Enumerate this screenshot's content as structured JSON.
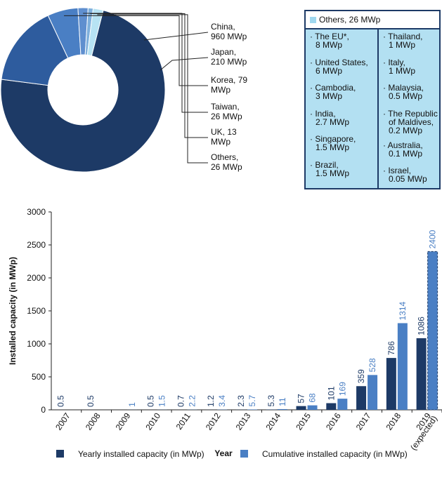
{
  "chart_data": [
    {
      "type": "pie",
      "slices": [
        {
          "label": "China,",
          "value_text": "960 MWp",
          "value": 960,
          "color": "#1d3a66"
        },
        {
          "label": "Japan,",
          "value_text": "210 MWp",
          "value": 210,
          "color": "#2e5c9e"
        },
        {
          "label": "Korea, 79",
          "value_text": "MWp",
          "value": 79,
          "color": "#4a7fc4"
        },
        {
          "label": "Taiwan,",
          "value_text": "26 MWp",
          "value": 26,
          "color": "#5f8fcf"
        },
        {
          "label": "UK, 13",
          "value_text": "MWp",
          "value": 13,
          "color": "#7fb0dc"
        },
        {
          "label": "Others,",
          "value_text": "26 MWp",
          "value": 26,
          "color": "#b7e3f3"
        }
      ]
    },
    {
      "type": "bar",
      "categories": [
        "2007",
        "2008",
        "2009",
        "2010",
        "2011",
        "2012",
        "2013",
        "2014",
        "2015",
        "2016",
        "2017",
        "2018",
        "2019"
      ],
      "category_sublabel": {
        "index": 12,
        "text": "(expected)"
      },
      "series": [
        {
          "name": "Yearly installed capacity (in MWp)",
          "color": "#1d3a66",
          "values": [
            0.5,
            0.5,
            null,
            0.5,
            0.7,
            1.2,
            2.3,
            5.3,
            57,
            101,
            359,
            786,
            1086
          ],
          "labels": [
            "0.5",
            "0.5",
            "",
            "0.5",
            "0.7",
            "1.2",
            "2.3",
            "5.3",
            "57",
            "101",
            "359",
            "786",
            "1086"
          ]
        },
        {
          "name": "Cumulative installed capacity (in MWp)",
          "color": "#4a7fc4",
          "values": [
            null,
            null,
            1,
            1.5,
            2.2,
            3.4,
            5.7,
            11,
            68,
            169,
            528,
            1314,
            2400
          ],
          "labels": [
            "",
            "",
            "1",
            "1.5",
            "2.2",
            "3.4",
            "5.7",
            "11",
            "68",
            "169",
            "528",
            "1314",
            "2400"
          ]
        }
      ],
      "expected_index": 12,
      "xlabel": "Year",
      "ylabel": "Installed capacity (in MWp)",
      "ylim": [
        0,
        3000
      ],
      "yticks": [
        0,
        500,
        1000,
        1500,
        2000,
        2500,
        3000
      ],
      "grid": false,
      "legend": "bottom"
    }
  ],
  "others_box": {
    "header": "Others, 26 MWp",
    "left": [
      [
        "· The EU*,",
        "8 MWp"
      ],
      [
        "· United States,",
        "6 MWp"
      ],
      [
        "· Cambodia,",
        "3 MWp"
      ],
      [
        "· India,",
        "2.7 MWp"
      ],
      [
        "· Singapore,",
        "1.5 MWp"
      ],
      [
        "· Brazil,",
        "1.5 MWp"
      ]
    ],
    "right": [
      [
        "· Thailand,",
        "1 MWp"
      ],
      [
        "· Italy,",
        "1 MWp"
      ],
      [
        "· Malaysia,",
        "0.5 MWp"
      ],
      [
        "· The Republic",
        "of Maldives,",
        "0.2 MWp"
      ],
      [
        "· Australia,",
        "0.1 MWp"
      ],
      [
        "· Israel,",
        "0.05 MWp"
      ]
    ]
  }
}
